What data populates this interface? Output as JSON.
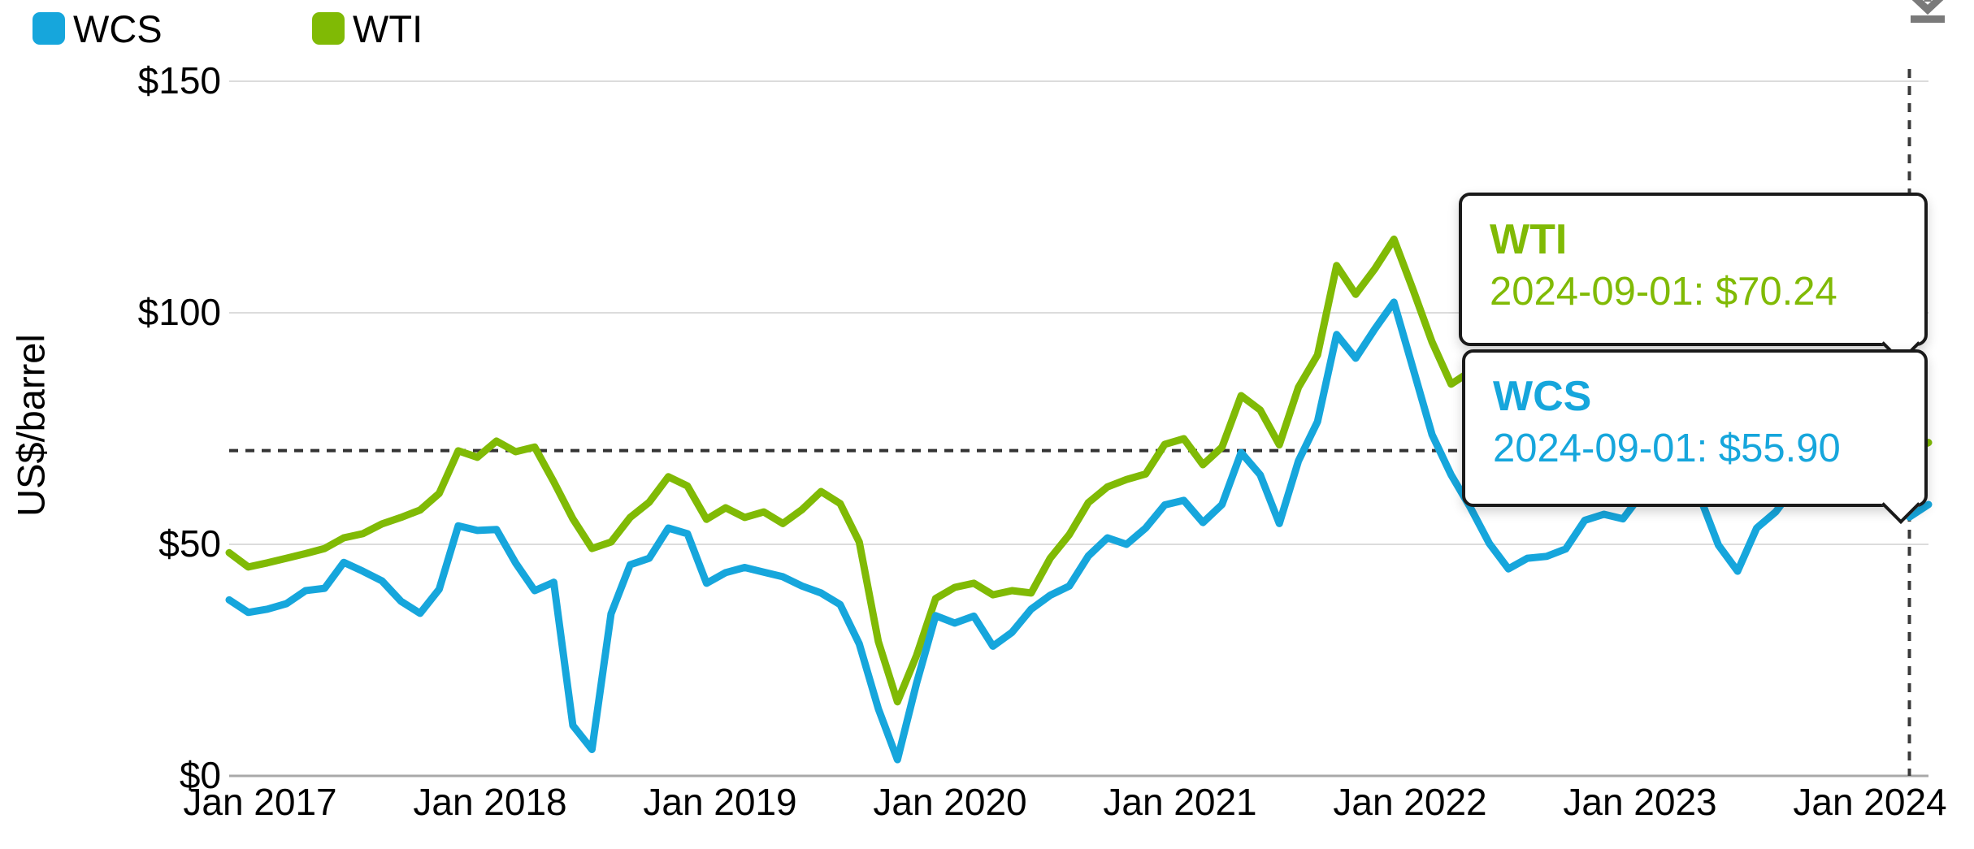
{
  "legend": {
    "items": [
      {
        "label": "WCS",
        "color": "#16A6DC"
      },
      {
        "label": "WTI",
        "color": "#80BA05"
      }
    ]
  },
  "y_axis": {
    "title": "US$/barrel",
    "max": 150,
    "ticks": [
      {
        "label": "$0",
        "value": 0
      },
      {
        "label": "$50",
        "value": 50
      },
      {
        "label": "$100",
        "value": 100
      },
      {
        "label": "$150",
        "value": 150
      }
    ]
  },
  "x_axis": {
    "labels": [
      "Jan 2017",
      "Jan 2018",
      "Jan 2019",
      "Jan 2020",
      "Jan 2021",
      "Jan 2022",
      "Jan 2023",
      "Jan 2024"
    ]
  },
  "tooltips": [
    {
      "series": "WTI",
      "value_text": "2024-09-01: $70.24",
      "color": "#80BA05"
    },
    {
      "series": "WCS",
      "value_text": "2024-09-01: $55.90",
      "color": "#16A6DC"
    }
  ],
  "icons": {
    "download": "download-icon"
  },
  "chart_data": {
    "type": "line",
    "title": "",
    "ylabel": "US$/barrel",
    "ylim": [
      0,
      150
    ],
    "grid": "horizontal",
    "legend_position": "top-left",
    "frequency": "monthly",
    "x_start": "2017-05",
    "x_end": "2024-10",
    "hover_date": "2024-09-01",
    "hover_index": 88,
    "hover_values": {
      "WTI": 70.24,
      "WCS": 55.9
    },
    "series": [
      {
        "name": "WCS",
        "color": "#16A6DC",
        "values": [
          38.0,
          35.3,
          36.0,
          37.2,
          40.0,
          40.5,
          46.1,
          44.2,
          42.1,
          37.7,
          35.1,
          40.3,
          54.0,
          53.0,
          53.2,
          46.0,
          40.0,
          41.8,
          10.9,
          5.7,
          35.0,
          45.6,
          47.0,
          53.5,
          52.3,
          41.6,
          43.9,
          45.0,
          44.0,
          43.0,
          41.0,
          39.5,
          37.0,
          28.5,
          14.5,
          3.5,
          20.0,
          34.6,
          33.0,
          34.5,
          28.0,
          31.0,
          36.0,
          39.0,
          41.0,
          47.5,
          51.4,
          50.0,
          53.5,
          58.5,
          59.5,
          54.7,
          58.6,
          69.8,
          65.0,
          54.5,
          68.0,
          76.5,
          95.3,
          90.2,
          96.5,
          102.3,
          88.0,
          73.7,
          65.0,
          58.0,
          50.2,
          44.7,
          47.0,
          47.4,
          49.0,
          55.2,
          56.5,
          55.5,
          61.0,
          66.5,
          74.0,
          60.5,
          49.8,
          44.2,
          53.5,
          57.0,
          62.5,
          71.0,
          66.5,
          65.5,
          65.8,
          62.7,
          55.9,
          58.6
        ]
      },
      {
        "name": "WTI",
        "color": "#80BA05",
        "values": [
          48.2,
          45.1,
          46.0,
          47.0,
          48.0,
          49.1,
          51.4,
          52.3,
          54.4,
          55.8,
          57.4,
          61.0,
          70.2,
          68.8,
          72.3,
          70.0,
          71.0,
          63.5,
          55.5,
          49.1,
          50.5,
          55.8,
          59.1,
          64.6,
          62.6,
          55.4,
          57.9,
          55.8,
          57.0,
          54.5,
          57.5,
          61.4,
          58.8,
          50.5,
          29.0,
          16.0,
          26.0,
          38.3,
          40.7,
          41.6,
          39.1,
          40.0,
          39.5,
          47.0,
          52.1,
          59.0,
          62.4,
          64.0,
          65.2,
          71.6,
          72.8,
          67.2,
          71.0,
          82.1,
          79.0,
          71.5,
          83.9,
          90.9,
          110.2,
          104.0,
          109.5,
          115.9,
          105.0,
          93.7,
          84.6,
          87.3,
          84.4,
          76.5,
          78.2,
          76.9,
          73.4,
          79.4,
          71.6,
          70.3,
          76.1,
          81.4,
          89.4,
          85.5,
          77.4,
          72.1,
          74.2,
          77.3,
          81.3,
          85.4,
          80.0,
          79.8,
          81.8,
          76.7,
          70.24,
          71.99
        ]
      }
    ]
  }
}
